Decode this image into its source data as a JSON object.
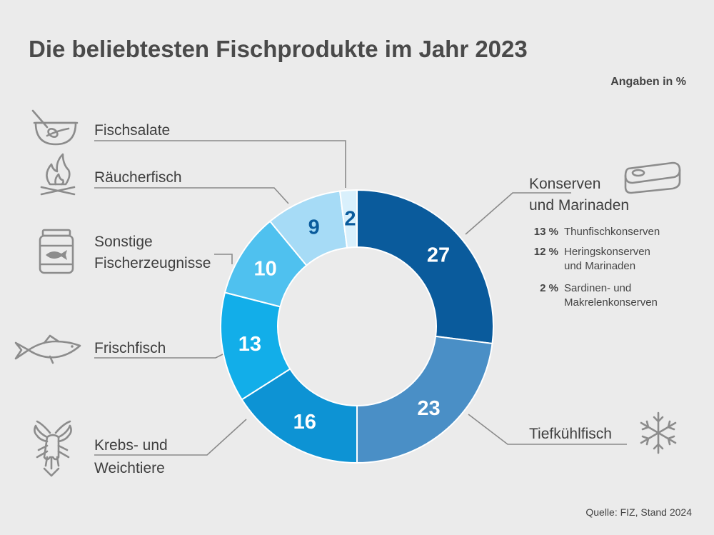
{
  "title": "Die beliebtesten Fischprodukte im Jahr 2023",
  "unit_note": "Angaben in %",
  "source": "Quelle:  FIZ, Stand 2024",
  "colors": {
    "background": "#ebebeb",
    "konserven": "#0a5b9c",
    "tiefkuehl": "#4a8fc6",
    "krebs": "#0d93d4",
    "frisch": "#12aee9",
    "sonstige": "#4fc1ef",
    "raeucher": "#a6dbf6",
    "salate": "#d9f0fc"
  },
  "chart_data": {
    "type": "pie",
    "variant": "donut",
    "title": "Die beliebtesten Fischprodukte im Jahr 2023",
    "unit": "%",
    "categories": [
      "Konserven und Marinaden",
      "Tiefkühlfisch",
      "Krebs- und Weichtiere",
      "Frischfisch",
      "Sonstige Fischerzeugnisse",
      "Räucherfisch",
      "Fischsalate"
    ],
    "values": [
      27,
      23,
      16,
      13,
      10,
      9,
      2
    ],
    "breakdown": {
      "category": "Konserven und Marinaden",
      "items": [
        {
          "pct": "13 %",
          "label": "Thunfischkonserven"
        },
        {
          "pct": "12 %",
          "label": "Heringskonserven und Marinaden"
        },
        {
          "pct": "2 %",
          "label": "Sardinen- und Makrelenkonserven"
        }
      ]
    }
  },
  "labels": {
    "konserven": [
      "Konserven",
      "und Marinaden"
    ],
    "tiefkuehl": [
      "Tiefkühlfisch"
    ],
    "krebs": [
      "Krebs- und",
      "Weichtiere"
    ],
    "frisch": [
      "Frischfisch"
    ],
    "sonstige": [
      "Sonstige",
      "Fischerzeugnisse"
    ],
    "raeucher": [
      "Räucherfisch"
    ],
    "salate": [
      "Fischsalate"
    ]
  },
  "breakdown_lines": [
    {
      "pct": "13 %",
      "lines": [
        "Thunfischkonserven"
      ]
    },
    {
      "pct": "12 %",
      "lines": [
        "Heringskonserven",
        "und Marinaden"
      ]
    },
    {
      "pct": "2 %",
      "lines": [
        "Sardinen- und",
        "Makrelenkonserven"
      ]
    }
  ],
  "icons": {
    "salate": "salad-bowl-icon",
    "raeucher": "campfire-icon",
    "sonstige": "fish-jar-icon",
    "frisch": "fish-icon",
    "krebs": "crayfish-icon",
    "konserven": "tin-can-icon",
    "tiefkuehl": "snowflake-icon"
  }
}
